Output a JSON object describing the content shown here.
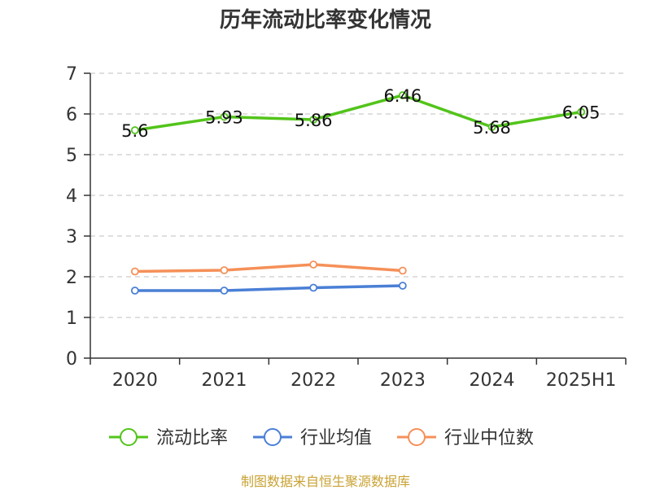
{
  "source": "制图数据来自恒生聚源数据库",
  "colors": {
    "flow_ratio": "#52c41a",
    "industry_avg": "#4a7fd6",
    "industry_median": "#f59058"
  },
  "chart_data": {
    "type": "line",
    "title": "历年流动比率变化情况",
    "categories": [
      "2020",
      "2021",
      "2022",
      "2023",
      "2024",
      "2025H1"
    ],
    "ylim": [
      0,
      7
    ],
    "yticks": [
      "0",
      "1",
      "2",
      "3",
      "4",
      "5",
      "6",
      "7"
    ],
    "grid": true,
    "legend": "bottom",
    "series": [
      {
        "name": "流动比率",
        "values": [
          5.6,
          5.93,
          5.86,
          6.46,
          5.68,
          6.05
        ],
        "labels": [
          "5.6",
          "5.93",
          "5.86",
          "6.46",
          "5.68",
          "6.05"
        ]
      },
      {
        "name": "行业均值",
        "values": [
          1.66,
          1.66,
          1.73,
          1.78,
          null,
          null
        ]
      },
      {
        "name": "行业中位数",
        "values": [
          2.13,
          2.16,
          2.3,
          2.15,
          null,
          null
        ]
      }
    ]
  }
}
